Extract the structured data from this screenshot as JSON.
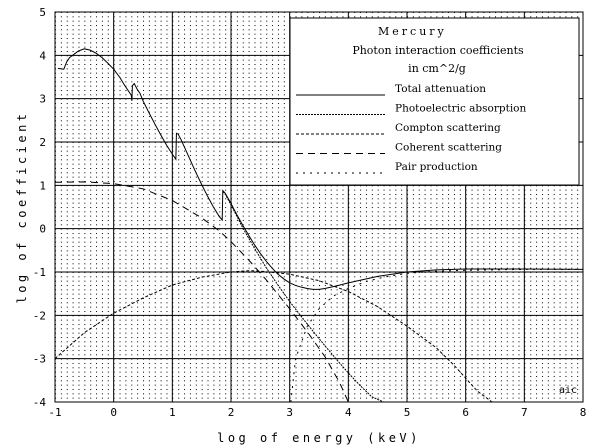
{
  "chart_data": {
    "type": "line",
    "title": "Mercury",
    "subtitle_line1": "Photon interaction coefficients",
    "subtitle_line2": "in cm^2/g",
    "xlabel": "log of energy (keV)",
    "ylabel": "log of coefficient",
    "corner_label": "aic",
    "xlim": [
      -1,
      8
    ],
    "ylim": [
      -4,
      5
    ],
    "x_ticks": [
      "-1",
      "0",
      "1",
      "2",
      "3",
      "4",
      "5",
      "6",
      "7",
      "8"
    ],
    "y_ticks": [
      "5",
      "4",
      "3",
      "2",
      "1",
      "0",
      "-1",
      "-2",
      "-3",
      "-4"
    ],
    "grid": true,
    "legend_position": "top-right",
    "series": [
      {
        "name": "Total attenuation",
        "dash": "solid",
        "x": [
          -0.95,
          -0.85,
          -0.8,
          -0.75,
          -0.6,
          -0.5,
          -0.4,
          -0.3,
          -0.2,
          -0.1,
          0.0,
          0.1,
          0.2,
          0.3,
          0.31,
          0.32,
          0.35,
          0.4,
          0.45,
          0.5,
          0.6,
          0.7,
          0.8,
          0.9,
          1.0,
          1.06,
          1.07,
          1.1,
          1.15,
          1.2,
          1.3,
          1.4,
          1.5,
          1.6,
          1.7,
          1.8,
          1.85,
          1.86,
          1.9,
          2.0,
          2.1,
          2.2,
          2.3,
          2.4,
          2.5,
          2.6,
          2.7,
          2.8,
          2.9,
          3.0,
          3.1,
          3.2,
          3.3,
          3.4,
          3.5,
          3.6,
          3.8,
          4.0,
          4.5,
          5.0,
          5.5,
          6.0,
          7.0,
          8.0
        ],
        "y": [
          3.7,
          3.68,
          3.85,
          3.95,
          4.1,
          4.15,
          4.12,
          4.05,
          3.95,
          3.82,
          3.68,
          3.5,
          3.28,
          3.08,
          2.95,
          3.3,
          3.35,
          3.22,
          3.12,
          2.95,
          2.68,
          2.42,
          2.17,
          1.93,
          1.72,
          1.6,
          2.2,
          2.18,
          2.05,
          1.9,
          1.6,
          1.3,
          1.02,
          0.75,
          0.5,
          0.28,
          0.2,
          0.88,
          0.82,
          0.58,
          0.32,
          0.08,
          -0.15,
          -0.37,
          -0.57,
          -0.75,
          -0.91,
          -1.05,
          -1.16,
          -1.25,
          -1.31,
          -1.35,
          -1.38,
          -1.4,
          -1.4,
          -1.38,
          -1.32,
          -1.25,
          -1.1,
          -1.0,
          -0.95,
          -0.93,
          -0.93,
          -0.94
        ]
      },
      {
        "name": "Photoelectric absorption",
        "dash": "dense",
        "x": [
          1.86,
          1.9,
          2.0,
          2.2,
          2.4,
          2.6,
          2.8,
          3.0,
          3.2,
          3.4,
          3.6,
          3.8,
          4.0,
          4.2,
          4.4,
          4.6
        ],
        "y": [
          0.86,
          0.8,
          0.55,
          0.02,
          -0.45,
          -0.9,
          -1.3,
          -1.68,
          -2.03,
          -2.37,
          -2.7,
          -3.02,
          -3.33,
          -3.62,
          -3.88,
          -4.0
        ]
      },
      {
        "name": "Compton scattering",
        "dash": "short",
        "x": [
          -1.0,
          -0.5,
          0.0,
          0.5,
          1.0,
          1.5,
          2.0,
          2.3,
          2.5,
          3.0,
          3.5,
          4.0,
          4.5,
          5.0,
          5.5,
          5.8,
          6.0,
          6.2,
          6.45
        ],
        "y": [
          -3.0,
          -2.4,
          -1.95,
          -1.6,
          -1.3,
          -1.12,
          -1.0,
          -0.97,
          -0.98,
          -1.05,
          -1.2,
          -1.45,
          -1.8,
          -2.25,
          -2.75,
          -3.15,
          -3.45,
          -3.75,
          -4.0
        ]
      },
      {
        "name": "Coherent scattering",
        "dash": "long",
        "x": [
          -1.0,
          -0.5,
          0.0,
          0.5,
          1.0,
          1.5,
          1.8,
          2.0,
          2.3,
          2.6,
          3.0,
          3.3,
          3.6,
          3.85,
          4.0
        ],
        "y": [
          1.07,
          1.08,
          1.04,
          0.92,
          0.65,
          0.25,
          -0.05,
          -0.3,
          -0.72,
          -1.18,
          -1.85,
          -2.38,
          -2.95,
          -3.55,
          -4.0
        ]
      },
      {
        "name": "Pair production",
        "dash": "sparse",
        "x": [
          3.02,
          3.1,
          3.3,
          3.5,
          3.75,
          4.0,
          4.3,
          4.6,
          5.0,
          5.5,
          6.0,
          6.5,
          7.0,
          8.0
        ],
        "y": [
          -4.0,
          -3.0,
          -2.25,
          -1.85,
          -1.55,
          -1.38,
          -1.22,
          -1.12,
          -1.03,
          -0.98,
          -0.96,
          -0.95,
          -0.94,
          -0.94
        ]
      }
    ]
  }
}
